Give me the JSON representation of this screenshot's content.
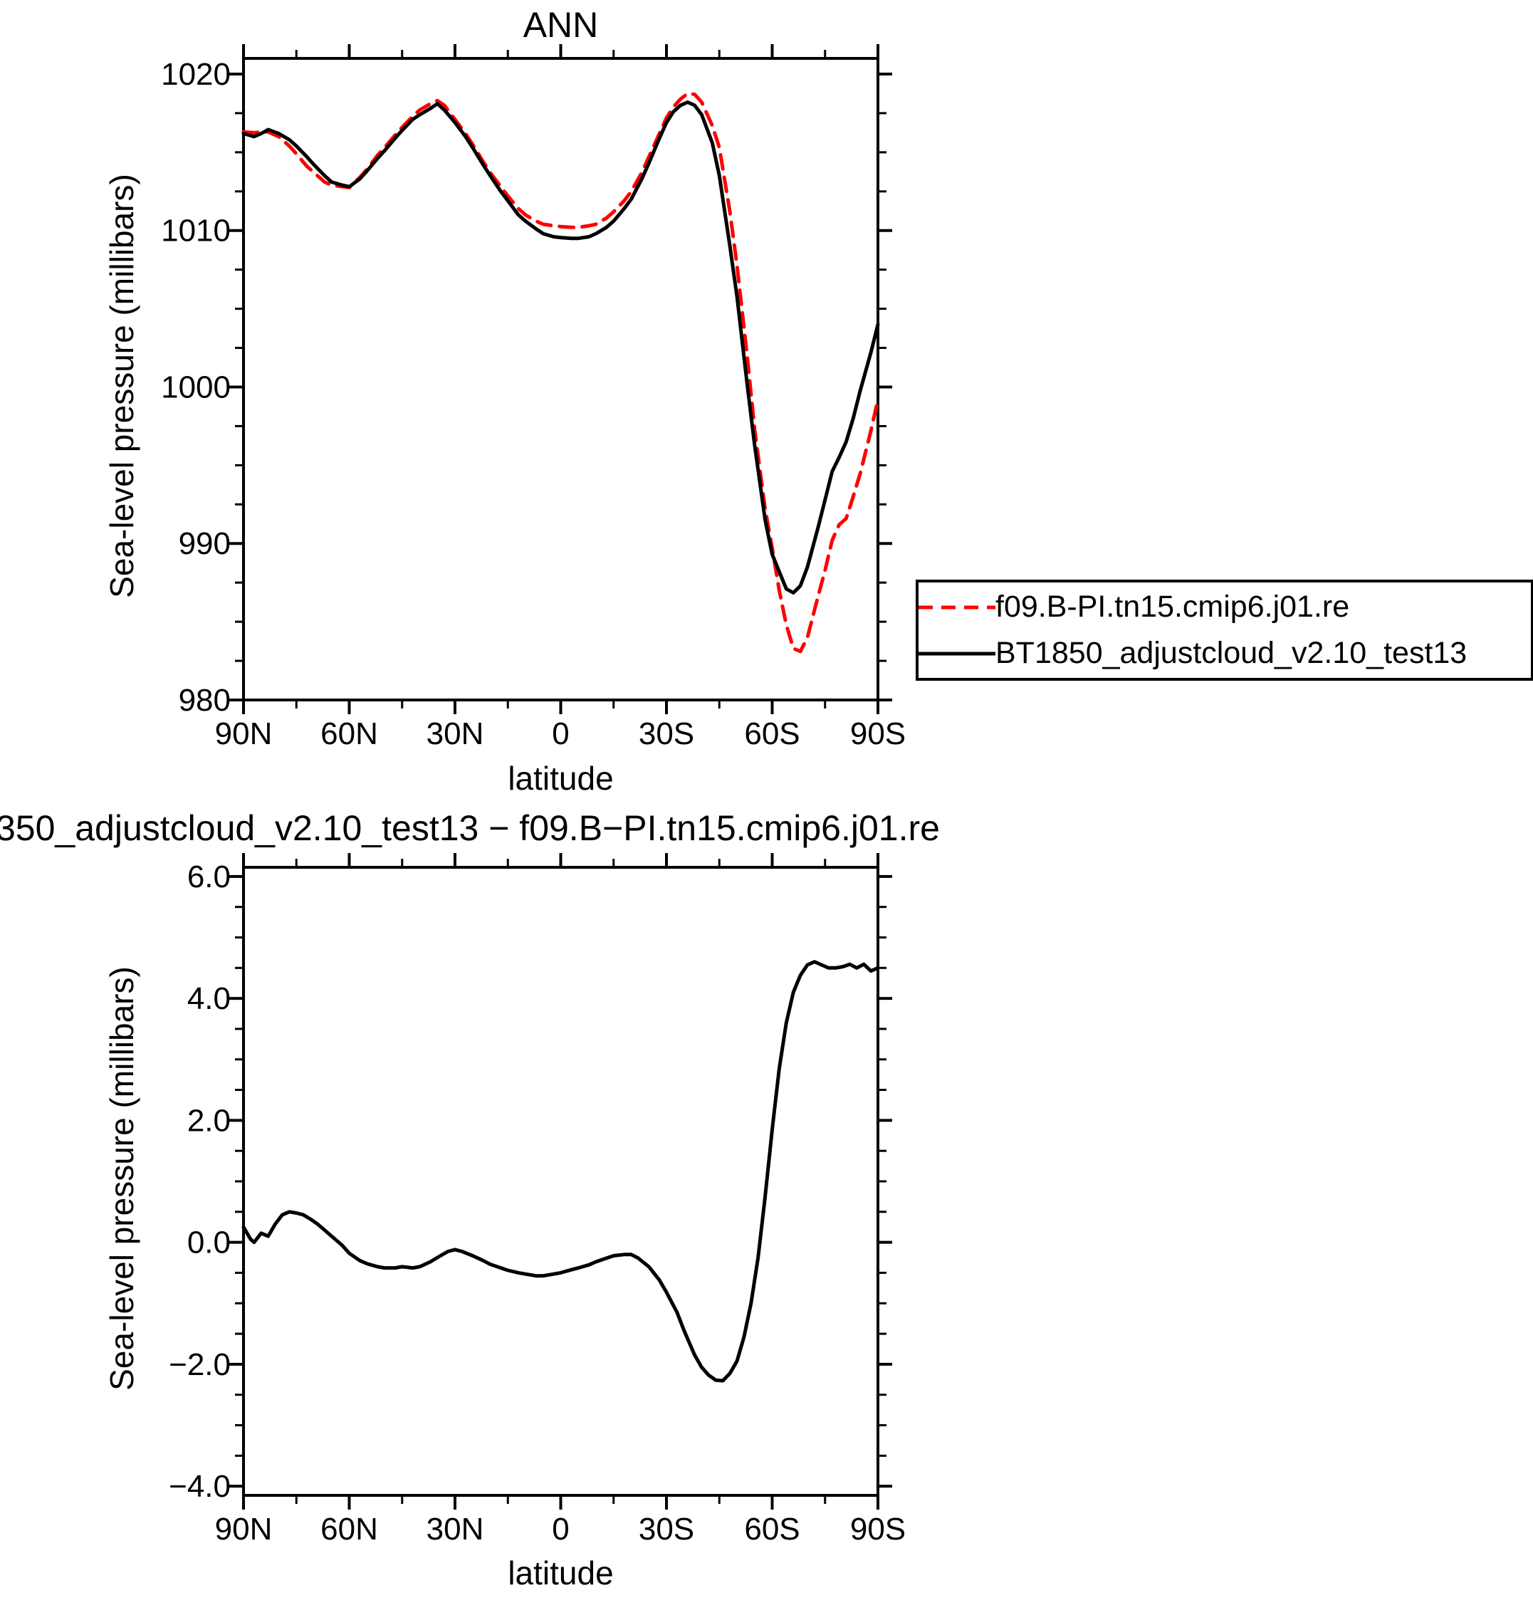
{
  "chart_data": [
    {
      "type": "line",
      "name": "ann-slp-chart",
      "title": "ANN",
      "xlabel": "latitude",
      "ylabel": "Sea-level pressure (millibars)",
      "xlim": [
        -90,
        90
      ],
      "ylim": [
        980,
        1021
      ],
      "xticks": [
        -90,
        -60,
        -30,
        0,
        30,
        60,
        90
      ],
      "xtick_labels": [
        "90N",
        "60N",
        "30N",
        "0",
        "30S",
        "60S",
        "90S"
      ],
      "xminor_step": 15,
      "yticks": [
        980,
        990,
        1000,
        1010,
        1020
      ],
      "ytick_labels": [
        "980",
        "990",
        "1000",
        "1010",
        "1020"
      ],
      "yminor_step": 2.5,
      "grid": false,
      "legend_position": "outside-right",
      "series": [
        {
          "name": "f09.B-PI.tn15.cmip6.j01.re",
          "color": "#ff0000",
          "style": "dashed",
          "points": [
            [
              -90,
              1016.3
            ],
            [
              -87,
              1016.25
            ],
            [
              -85,
              1016.3
            ],
            [
              -83,
              1016.3
            ],
            [
              -80,
              1016.0
            ],
            [
              -77,
              1015.4
            ],
            [
              -75,
              1014.9
            ],
            [
              -72,
              1014.1
            ],
            [
              -70,
              1013.7
            ],
            [
              -67,
              1013.1
            ],
            [
              -65,
              1012.9
            ],
            [
              -62,
              1012.8
            ],
            [
              -60,
              1012.75
            ],
            [
              -57,
              1013.4
            ],
            [
              -55,
              1013.9
            ],
            [
              -52,
              1014.8
            ],
            [
              -50,
              1015.3
            ],
            [
              -47,
              1016.1
            ],
            [
              -45,
              1016.6
            ],
            [
              -42,
              1017.3
            ],
            [
              -40,
              1017.7
            ],
            [
              -37,
              1018.1
            ],
            [
              -35,
              1018.3
            ],
            [
              -33,
              1018.0
            ],
            [
              -30,
              1017.1
            ],
            [
              -27,
              1016.2
            ],
            [
              -25,
              1015.5
            ],
            [
              -22,
              1014.4
            ],
            [
              -20,
              1013.7
            ],
            [
              -17,
              1012.8
            ],
            [
              -15,
              1012.2
            ],
            [
              -12,
              1011.4
            ],
            [
              -10,
              1011.0
            ],
            [
              -7,
              1010.6
            ],
            [
              -5,
              1010.4
            ],
            [
              -2,
              1010.3
            ],
            [
              0,
              1010.25
            ],
            [
              3,
              1010.2
            ],
            [
              5,
              1010.2
            ],
            [
              8,
              1010.3
            ],
            [
              10,
              1010.4
            ],
            [
              13,
              1010.8
            ],
            [
              15,
              1011.2
            ],
            [
              18,
              1011.9
            ],
            [
              20,
              1012.5
            ],
            [
              23,
              1013.7
            ],
            [
              25,
              1014.7
            ],
            [
              28,
              1016.2
            ],
            [
              30,
              1017.2
            ],
            [
              32,
              1017.9
            ],
            [
              34,
              1018.4
            ],
            [
              36,
              1018.75
            ],
            [
              38,
              1018.7
            ],
            [
              40,
              1018.2
            ],
            [
              43,
              1016.7
            ],
            [
              45,
              1015.3
            ],
            [
              48,
              1011.2
            ],
            [
              50,
              1007.8
            ],
            [
              53,
              1001.8
            ],
            [
              55,
              997.3
            ],
            [
              58,
              992.2
            ],
            [
              60,
              989.7
            ],
            [
              62,
              987.0
            ],
            [
              64,
              984.8
            ],
            [
              66,
              983.3
            ],
            [
              68,
              983.1
            ],
            [
              70,
              984.0
            ],
            [
              73,
              986.6
            ],
            [
              75,
              988.3
            ],
            [
              77,
              990.2
            ],
            [
              79,
              991.2
            ],
            [
              81,
              991.6
            ],
            [
              83,
              993.0
            ],
            [
              85,
              994.5
            ],
            [
              88,
              997.2
            ],
            [
              90,
              999.2
            ]
          ]
        },
        {
          "name": "BT1850_adjustcloud_v2.10_test13",
          "color": "#000000",
          "style": "solid",
          "points": [
            [
              -90,
              1016.2
            ],
            [
              -87,
              1016.0
            ],
            [
              -85,
              1016.2
            ],
            [
              -83,
              1016.45
            ],
            [
              -80,
              1016.2
            ],
            [
              -77,
              1015.8
            ],
            [
              -75,
              1015.4
            ],
            [
              -72,
              1014.7
            ],
            [
              -70,
              1014.2
            ],
            [
              -67,
              1013.5
            ],
            [
              -65,
              1013.1
            ],
            [
              -62,
              1012.9
            ],
            [
              -60,
              1012.8
            ],
            [
              -57,
              1013.3
            ],
            [
              -55,
              1013.8
            ],
            [
              -52,
              1014.6
            ],
            [
              -50,
              1015.1
            ],
            [
              -47,
              1015.9
            ],
            [
              -45,
              1016.4
            ],
            [
              -42,
              1017.1
            ],
            [
              -40,
              1017.4
            ],
            [
              -37,
              1017.8
            ],
            [
              -35,
              1018.1
            ],
            [
              -33,
              1017.7
            ],
            [
              -30,
              1016.9
            ],
            [
              -27,
              1016.0
            ],
            [
              -25,
              1015.3
            ],
            [
              -22,
              1014.2
            ],
            [
              -20,
              1013.5
            ],
            [
              -17,
              1012.5
            ],
            [
              -15,
              1011.9
            ],
            [
              -12,
              1011.0
            ],
            [
              -10,
              1010.6
            ],
            [
              -7,
              1010.1
            ],
            [
              -5,
              1009.8
            ],
            [
              -2,
              1009.6
            ],
            [
              0,
              1009.55
            ],
            [
              3,
              1009.5
            ],
            [
              5,
              1009.5
            ],
            [
              8,
              1009.6
            ],
            [
              10,
              1009.8
            ],
            [
              13,
              1010.2
            ],
            [
              15,
              1010.6
            ],
            [
              18,
              1011.4
            ],
            [
              20,
              1012.0
            ],
            [
              23,
              1013.3
            ],
            [
              25,
              1014.3
            ],
            [
              28,
              1015.9
            ],
            [
              30,
              1016.9
            ],
            [
              32,
              1017.6
            ],
            [
              34,
              1018.0
            ],
            [
              36,
              1018.2
            ],
            [
              38,
              1018.0
            ],
            [
              40,
              1017.4
            ],
            [
              43,
              1015.6
            ],
            [
              45,
              1013.5
            ],
            [
              48,
              1009.0
            ],
            [
              50,
              1005.8
            ],
            [
              53,
              1000.0
            ],
            [
              55,
              996.3
            ],
            [
              58,
              991.5
            ],
            [
              60,
              989.3
            ],
            [
              62,
              988.2
            ],
            [
              64,
              987.1
            ],
            [
              66,
              986.85
            ],
            [
              68,
              987.3
            ],
            [
              70,
              988.5
            ],
            [
              73,
              991.0
            ],
            [
              75,
              992.8
            ],
            [
              77,
              994.6
            ],
            [
              79,
              995.5
            ],
            [
              81,
              996.5
            ],
            [
              83,
              998.0
            ],
            [
              85,
              999.8
            ],
            [
              88,
              1002.2
            ],
            [
              90,
              1004.0
            ]
          ]
        }
      ]
    },
    {
      "type": "line",
      "name": "difference-chart",
      "title": "350_adjustcloud_v2.10_test13 − f09.B−PI.tn15.cmip6.j01.re",
      "xlabel": "latitude",
      "ylabel": "Sea-level pressure (millibars)",
      "xlim": [
        -90,
        90
      ],
      "ylim": [
        -4.15,
        6.15
      ],
      "xticks": [
        -90,
        -60,
        -30,
        0,
        30,
        60,
        90
      ],
      "xtick_labels": [
        "90N",
        "60N",
        "30N",
        "0",
        "30S",
        "60S",
        "90S"
      ],
      "xminor_step": 15,
      "yticks": [
        -4,
        -2,
        0,
        2,
        4,
        6
      ],
      "ytick_labels": [
        "−4.0",
        "−2.0",
        "0.0",
        "2.0",
        "4.0",
        "6.0"
      ],
      "yminor_step": 0.5,
      "grid": false,
      "legend_position": "none",
      "series": [
        {
          "name": "BT1850_adjustcloud_v2.10_test13 minus f09.B-PI.tn15.cmip6.j01.re",
          "color": "#000000",
          "style": "solid",
          "points": [
            [
              -90,
              0.25
            ],
            [
              -88,
              0.05
            ],
            [
              -87,
              0.0
            ],
            [
              -85,
              0.15
            ],
            [
              -83,
              0.1
            ],
            [
              -81,
              0.3
            ],
            [
              -79,
              0.45
            ],
            [
              -77,
              0.5
            ],
            [
              -75,
              0.48
            ],
            [
              -73,
              0.45
            ],
            [
              -71,
              0.38
            ],
            [
              -69,
              0.3
            ],
            [
              -67,
              0.2
            ],
            [
              -65,
              0.1
            ],
            [
              -62,
              -0.05
            ],
            [
              -60,
              -0.18
            ],
            [
              -57,
              -0.3
            ],
            [
              -55,
              -0.35
            ],
            [
              -52,
              -0.4
            ],
            [
              -50,
              -0.42
            ],
            [
              -47,
              -0.42
            ],
            [
              -45,
              -0.4
            ],
            [
              -42,
              -0.42
            ],
            [
              -40,
              -0.4
            ],
            [
              -37,
              -0.32
            ],
            [
              -35,
              -0.25
            ],
            [
              -32,
              -0.15
            ],
            [
              -30,
              -0.12
            ],
            [
              -28,
              -0.15
            ],
            [
              -25,
              -0.22
            ],
            [
              -22,
              -0.3
            ],
            [
              -20,
              -0.36
            ],
            [
              -17,
              -0.42
            ],
            [
              -15,
              -0.46
            ],
            [
              -12,
              -0.5
            ],
            [
              -10,
              -0.52
            ],
            [
              -7,
              -0.55
            ],
            [
              -5,
              -0.55
            ],
            [
              -2,
              -0.52
            ],
            [
              0,
              -0.5
            ],
            [
              3,
              -0.45
            ],
            [
              5,
              -0.42
            ],
            [
              8,
              -0.37
            ],
            [
              10,
              -0.32
            ],
            [
              13,
              -0.26
            ],
            [
              15,
              -0.22
            ],
            [
              18,
              -0.2
            ],
            [
              20,
              -0.2
            ],
            [
              22,
              -0.26
            ],
            [
              25,
              -0.4
            ],
            [
              28,
              -0.62
            ],
            [
              30,
              -0.82
            ],
            [
              33,
              -1.15
            ],
            [
              35,
              -1.45
            ],
            [
              38,
              -1.85
            ],
            [
              40,
              -2.05
            ],
            [
              42,
              -2.18
            ],
            [
              44,
              -2.26
            ],
            [
              46,
              -2.27
            ],
            [
              48,
              -2.15
            ],
            [
              50,
              -1.95
            ],
            [
              52,
              -1.55
            ],
            [
              54,
              -1.0
            ],
            [
              56,
              -0.25
            ],
            [
              58,
              0.75
            ],
            [
              60,
              1.85
            ],
            [
              62,
              2.85
            ],
            [
              64,
              3.6
            ],
            [
              66,
              4.1
            ],
            [
              68,
              4.38
            ],
            [
              70,
              4.55
            ],
            [
              72,
              4.6
            ],
            [
              74,
              4.55
            ],
            [
              76,
              4.5
            ],
            [
              78,
              4.5
            ],
            [
              80,
              4.52
            ],
            [
              82,
              4.56
            ],
            [
              84,
              4.5
            ],
            [
              86,
              4.56
            ],
            [
              88,
              4.45
            ],
            [
              90,
              4.5
            ]
          ]
        }
      ]
    }
  ],
  "legend": {
    "entries": [
      {
        "label": "f09.B-PI.tn15.cmip6.j01.re",
        "style": "dashed",
        "color": "#ff0000"
      },
      {
        "label": "BT1850_adjustcloud_v2.10_test13",
        "style": "solid",
        "color": "#000000"
      }
    ]
  },
  "colors": {
    "axis": "#000000",
    "background": "#ffffff",
    "series_red": "#ff0000",
    "series_black": "#000000"
  }
}
